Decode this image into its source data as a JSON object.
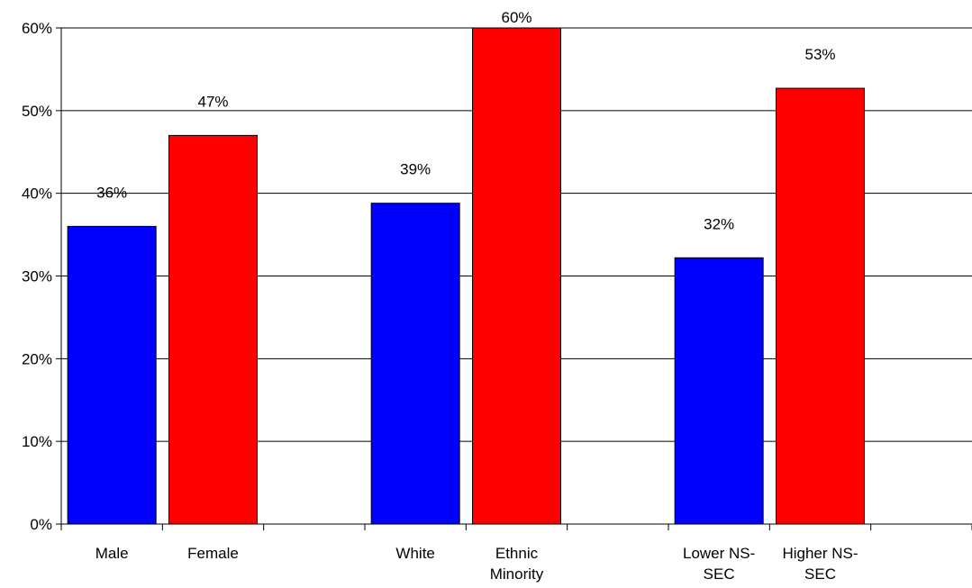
{
  "chart_data": {
    "type": "bar",
    "title": "",
    "xlabel": "",
    "ylabel": "",
    "ylim": [
      0,
      60
    ],
    "yticks": [
      0,
      10,
      20,
      30,
      40,
      50,
      60
    ],
    "ytick_labels": [
      "0%",
      "10%",
      "20%",
      "30%",
      "40%",
      "50%",
      "60%"
    ],
    "grid": "horizontal",
    "slots": 9,
    "categories": [
      {
        "slot": 0,
        "label": [
          "Male"
        ],
        "value": 36,
        "data_label": "36%",
        "color": "#0000FF"
      },
      {
        "slot": 1,
        "label": [
          "Female"
        ],
        "value": 47,
        "data_label": "47%",
        "color": "#FF0000"
      },
      {
        "slot": 3,
        "label": [
          "White"
        ],
        "value": 38.8,
        "data_label": "39%",
        "color": "#0000FF"
      },
      {
        "slot": 4,
        "label": [
          "Ethnic",
          "Minority"
        ],
        "value": 60,
        "data_label": "60%",
        "color": "#FF0000"
      },
      {
        "slot": 6,
        "label": [
          "Lower NS-",
          "SEC"
        ],
        "value": 32.2,
        "data_label": "32%",
        "color": "#0000FF"
      },
      {
        "slot": 7,
        "label": [
          "Higher NS-",
          "SEC"
        ],
        "value": 52.7,
        "data_label": "53%",
        "color": "#FF0000"
      }
    ]
  }
}
